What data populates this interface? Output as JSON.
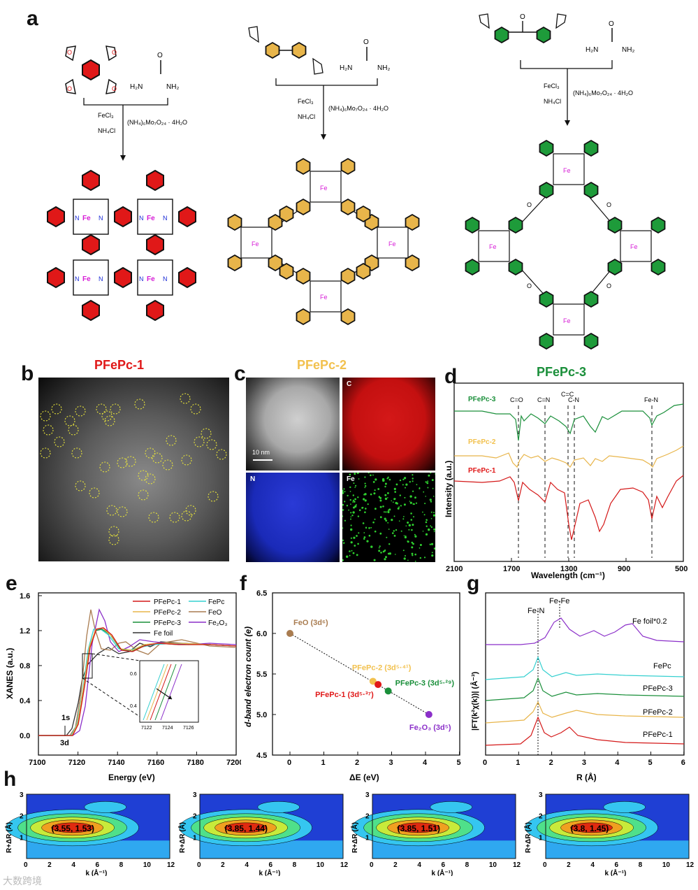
{
  "figure": {
    "panels": [
      "a",
      "b",
      "c",
      "d",
      "e",
      "f",
      "g",
      "h"
    ],
    "watermark": "大数跨境"
  },
  "a": {
    "reagents": {
      "urea_nh2": "H₂N",
      "urea_nh2b": "NH₂",
      "fecl3": "FeCl₃",
      "nh4cl": "NH₄Cl",
      "molybdate": "(NH₄)₆Mo₇O₂₄ · 4H₂O"
    },
    "metal": "Fe",
    "nitrogen": "N"
  },
  "b": {
    "title": "PFePc-1",
    "title_color": "#e01818"
  },
  "c": {
    "title": "PFePc-2",
    "title_color": "#f2c14e",
    "scale": "10 nm",
    "maps": [
      "C",
      "N",
      "Fe"
    ]
  },
  "d": {
    "title": "PFePc-3",
    "title_color": "#1a8f3a",
    "ylabel": "Intensity (a.u.)",
    "xlabel": "Wavelength (cm⁻¹)",
    "xticks": [
      "2100",
      "1700",
      "1300",
      "900",
      "500"
    ],
    "series": [
      "PFePc-3",
      "PFePc-2",
      "PFePc-1"
    ],
    "annotations": [
      "C=O",
      "C=N",
      "C=C",
      "C-N",
      "Fe-N"
    ]
  },
  "e": {
    "ylabel": "XANES (a.u.)",
    "xlabel": "Energy (eV)",
    "xticks": [
      "7100",
      "7120",
      "7140",
      "7160",
      "7180",
      "7200"
    ],
    "yticks": [
      "0.0",
      "0.4",
      "0.8",
      "1.2",
      "1.6"
    ],
    "legend": [
      "PFePc-1",
      "PFePc-2",
      "PFePc-3",
      "Fe foil",
      "FePc",
      "FeO",
      "Fe₂O₃"
    ],
    "inset_xticks": [
      "7122",
      "7124",
      "7126"
    ],
    "inset_yticks": [
      "0.6",
      "0.4"
    ],
    "notes": [
      "1s",
      "3d"
    ]
  },
  "f": {
    "ylabel": "d-band electron count (e)",
    "xlabel": "ΔE (eV)",
    "xticks": [
      "0",
      "1",
      "2",
      "3",
      "4",
      "5"
    ],
    "yticks": [
      "4.5",
      "5.0",
      "5.5",
      "6.0",
      "6.5"
    ],
    "points": [
      {
        "label": "FeO (3d⁶)",
        "x": 0.0,
        "y": 6.0,
        "color": "#a97c50"
      },
      {
        "label": "PFePc-2 (3d⁵·⁴¹)",
        "x": 2.45,
        "y": 5.41,
        "color": "#f2c14e"
      },
      {
        "label": "PFePc-1 (3d⁵·³⁷)",
        "x": 2.6,
        "y": 5.37,
        "color": "#e01818"
      },
      {
        "label": "PFePc-3 (3d⁵·²⁹)",
        "x": 2.9,
        "y": 5.29,
        "color": "#1a8f3a"
      },
      {
        "label": "Fe₂O₃ (3d⁵)",
        "x": 4.1,
        "y": 5.0,
        "color": "#8b2fc9"
      }
    ]
  },
  "g": {
    "ylabel": "|FT(k²χ(k))| (Å⁻³)",
    "xlabel": "R (Å)",
    "xticks": [
      "0",
      "1",
      "2",
      "3",
      "4",
      "5",
      "6"
    ],
    "annotations": [
      "Fe-N",
      "Fe-Fe"
    ],
    "series": [
      "Fe foil*0.2",
      "FePc",
      "PFePc-3",
      "PFePc-2",
      "PFePc-1"
    ]
  },
  "h": {
    "ylabel": "R+ΔR (Å)",
    "xlabel": "k (Å⁻¹)",
    "xticks": [
      "0",
      "2",
      "4",
      "6",
      "8",
      "10",
      "12"
    ],
    "yticks": [
      "1",
      "2",
      "3"
    ],
    "maxima": [
      "(3.55, 1.53)",
      "(3.85, 1.44)",
      "(3.85, 1.51)",
      "(3.8, 1.45)"
    ]
  }
}
